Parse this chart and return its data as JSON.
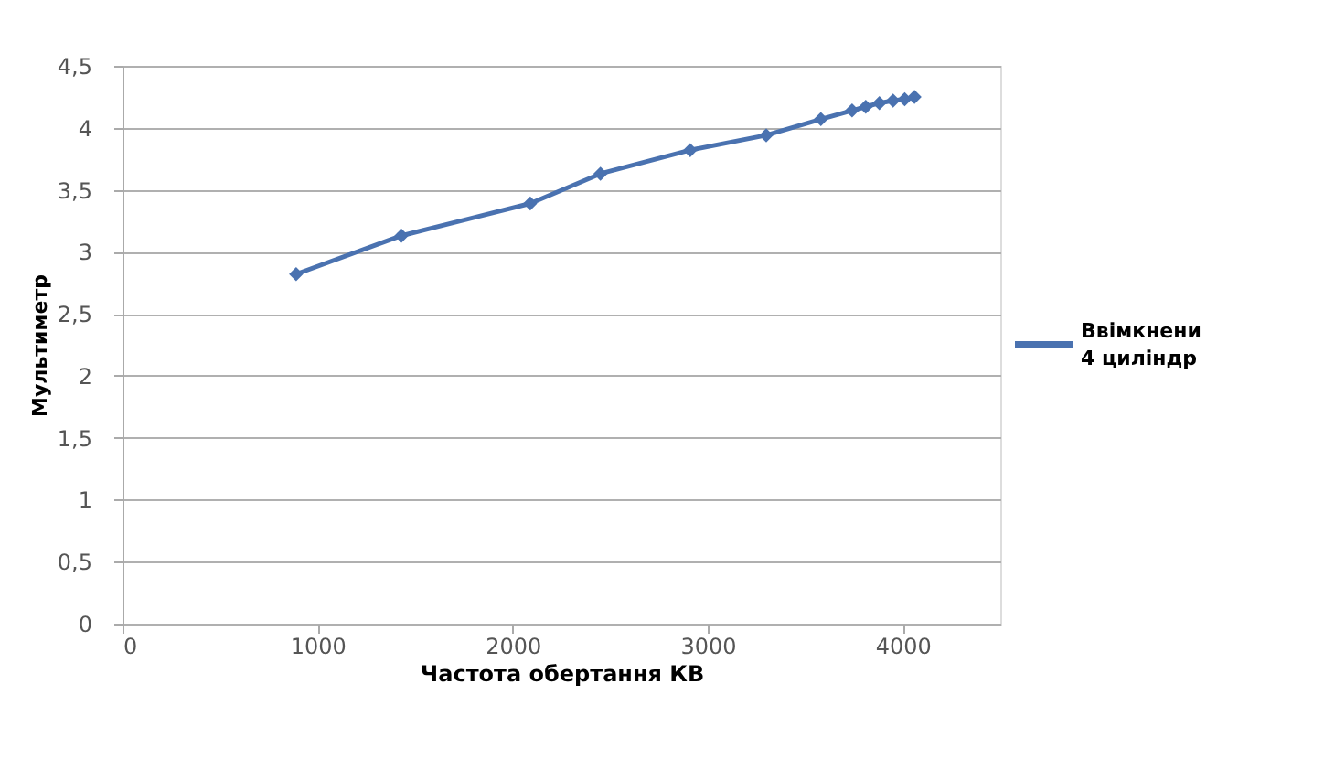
{
  "chart_data": {
    "type": "line",
    "xlabel": "Частота обертання КВ",
    "ylabel": "Мультиметр",
    "x": [
      890,
      1430,
      2090,
      2450,
      2910,
      3300,
      3580,
      3740,
      3810,
      3880,
      3950,
      4010,
      4060
    ],
    "series": [
      {
        "name": "Ввімкнени 4 циліндр",
        "color": "#4a72b0",
        "values": [
          2.82,
          3.13,
          3.39,
          3.63,
          3.82,
          3.94,
          4.07,
          4.14,
          4.17,
          4.2,
          4.22,
          4.23,
          4.25
        ]
      }
    ],
    "xlim": [
      0,
      4500
    ],
    "xticks": [
      0,
      1000,
      2000,
      3000,
      4000
    ],
    "ylim": [
      0,
      4.5
    ],
    "yticks": [
      {
        "value": 0,
        "label": "0"
      },
      {
        "value": 0.5,
        "label": "0,5"
      },
      {
        "value": 1,
        "label": "1"
      },
      {
        "value": 1.5,
        "label": "1,5"
      },
      {
        "value": 2,
        "label": "2"
      },
      {
        "value": 2.5,
        "label": "2,5"
      },
      {
        "value": 3,
        "label": "3"
      },
      {
        "value": 3.5,
        "label": "3,5"
      },
      {
        "value": 4,
        "label": "4"
      },
      {
        "value": 4.5,
        "label": "4,5"
      }
    ],
    "grid": "y",
    "legend": "right",
    "marker": "diamond",
    "line_style": "solid"
  }
}
